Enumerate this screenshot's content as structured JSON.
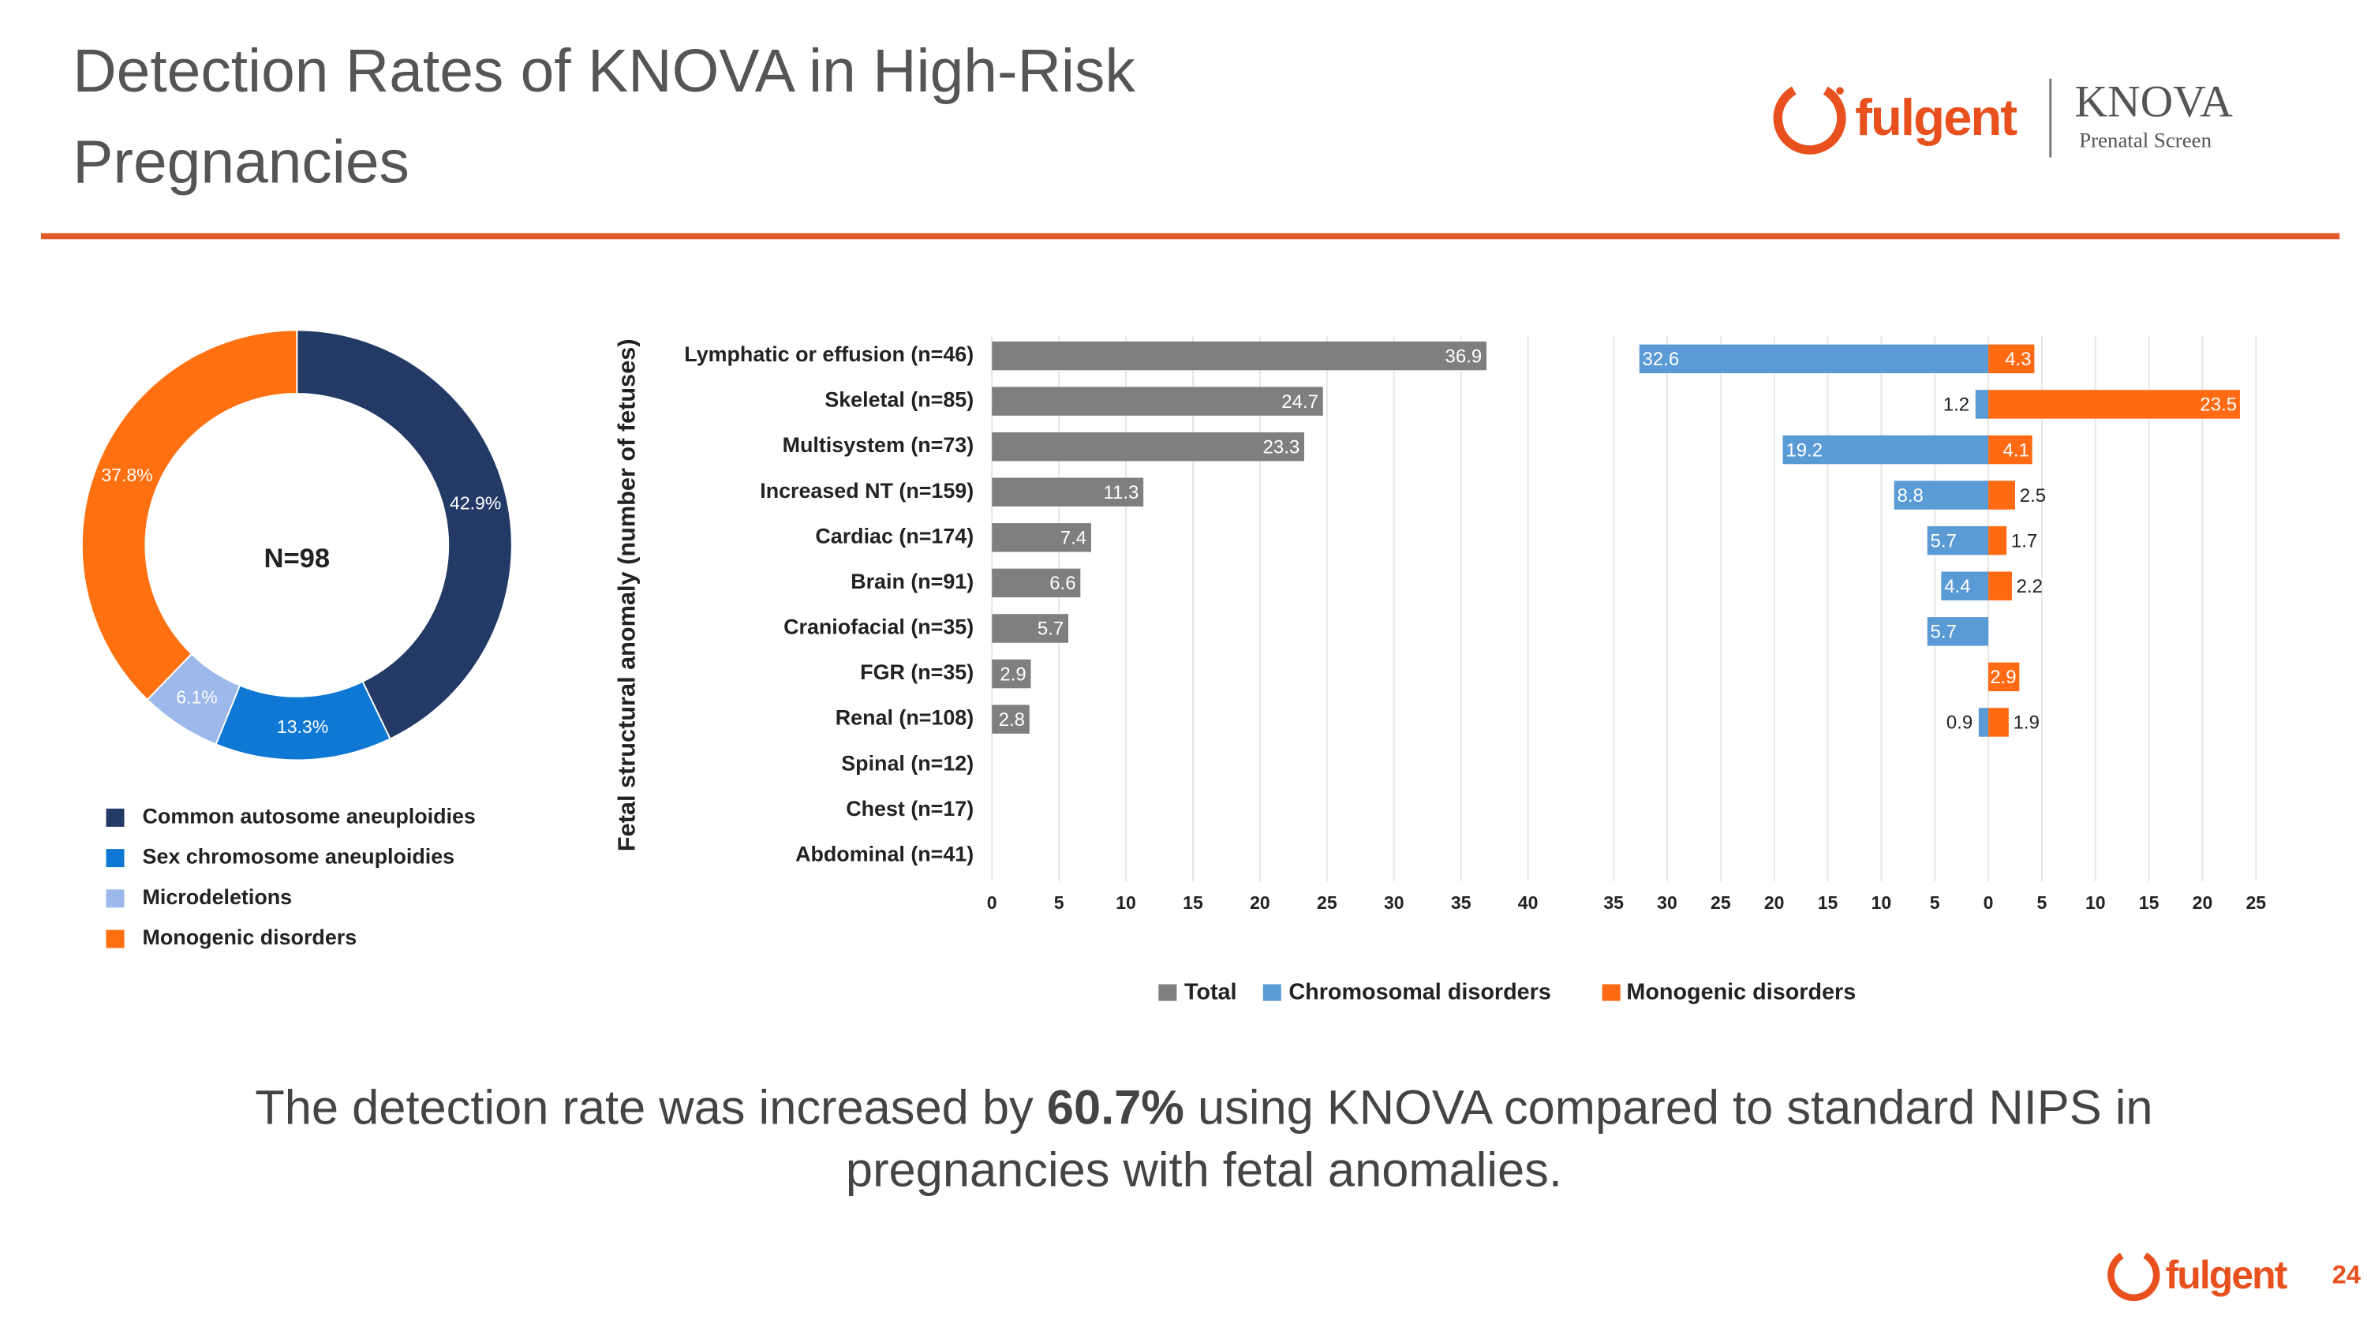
{
  "title": [
    "Detection Rates of KNOVA in High-Risk",
    "Pregnancies"
  ],
  "logo": {
    "brand": "fulgent",
    "product": "KNOVA",
    "product_sub": "Prenatal Screen"
  },
  "caption": [
    "The detection rate was increased by ",
    "60.7%",
    " using KNOVA compared to standard NIPS in",
    "pregnancies with fetal anomalies."
  ],
  "footer": {
    "brand": "fulgent",
    "page": 24
  },
  "chart_data": [
    {
      "type": "pie",
      "center_label": "N=98",
      "categories": [
        "Common autosome aneuploidies",
        "Sex chromosome aneuploidies",
        "Microdeletions",
        "Monogenic disorders"
      ],
      "values": [
        42.9,
        13.3,
        6.1,
        37.8
      ],
      "value_labels": [
        "42.9%",
        "13.3%",
        "6.1%",
        "37.8%"
      ],
      "colors": [
        "#243a66",
        "#0f78d4",
        "#9db8ea",
        "#ff7010"
      ]
    },
    {
      "type": "bar",
      "orientation": "horizontal",
      "y_label": "Fetal structural anomaly (number of fetuses)",
      "categories": [
        "Lymphatic or effusion (n=46)",
        "Skeletal (n=85)",
        "Multisystem (n=73)",
        "Increased NT (n=159)",
        "Cardiac (n=174)",
        "Brain (n=91)",
        "Craniofacial (n=35)",
        "FGR (n=35)",
        "Renal (n=108)",
        "Spinal (n=12)",
        "Chest (n=17)",
        "Abdominal (n=41)"
      ],
      "series": [
        {
          "name": "Total",
          "color": "#7f7f7f",
          "values": [
            36.9,
            24.7,
            23.3,
            11.3,
            7.4,
            6.6,
            5.7,
            2.9,
            2.8,
            null,
            null,
            null
          ]
        }
      ],
      "xlim": [
        0,
        42
      ],
      "xticks": [
        0,
        5,
        10,
        15,
        20,
        25,
        30,
        35,
        40
      ],
      "grid": true
    },
    {
      "type": "diverging_bar",
      "orientation": "horizontal",
      "series": [
        {
          "name": "Chromosomal disorders",
          "color": "#5b9bd5",
          "values": [
            -32.6,
            -1.2,
            -19.2,
            -8.8,
            -5.7,
            -4.4,
            -5.7,
            null,
            -0.9,
            null,
            null,
            null
          ],
          "value_labels": [
            "32.6",
            "1.2",
            "19.2",
            "8.8",
            "5.7",
            "4.4",
            "5.7",
            null,
            "0.9",
            null,
            null,
            null
          ]
        },
        {
          "name": "Monogenic disorders",
          "color": "#ff6a13",
          "values": [
            4.3,
            23.5,
            4.1,
            2.5,
            1.7,
            2.2,
            null,
            2.9,
            1.9,
            null,
            null,
            null
          ]
        }
      ],
      "xlim": [
        -36,
        26
      ],
      "xticks": [
        {
          "value": -35,
          "label": "35"
        },
        {
          "value": -30,
          "label": "30"
        },
        {
          "value": -25,
          "label": "25"
        },
        {
          "value": -20,
          "label": "20"
        },
        {
          "value": -15,
          "label": "15"
        },
        {
          "value": -10,
          "label": "10"
        },
        {
          "value": -5,
          "label": "5"
        },
        0,
        5,
        10,
        15,
        20,
        25
      ],
      "grid": true
    }
  ]
}
